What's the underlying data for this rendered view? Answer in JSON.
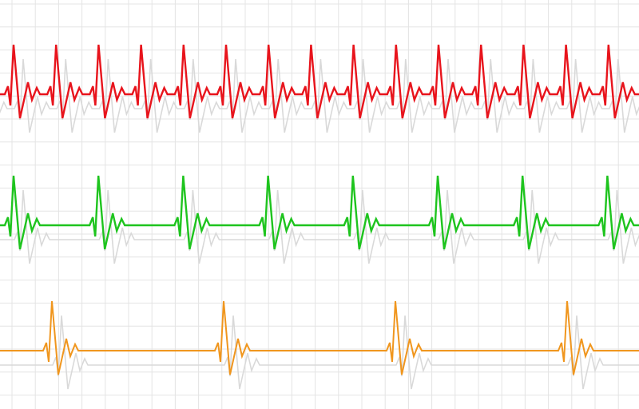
{
  "background": "#ffffff",
  "grid_color": "#e4e4e4",
  "shadow_color": "#d9d9d9",
  "traces": [
    {
      "name": "red-trace",
      "color": "#e8141c"
    },
    {
      "name": "green-trace",
      "color": "#1ec41e"
    },
    {
      "name": "orange-trace",
      "color": "#f0961e"
    }
  ]
}
